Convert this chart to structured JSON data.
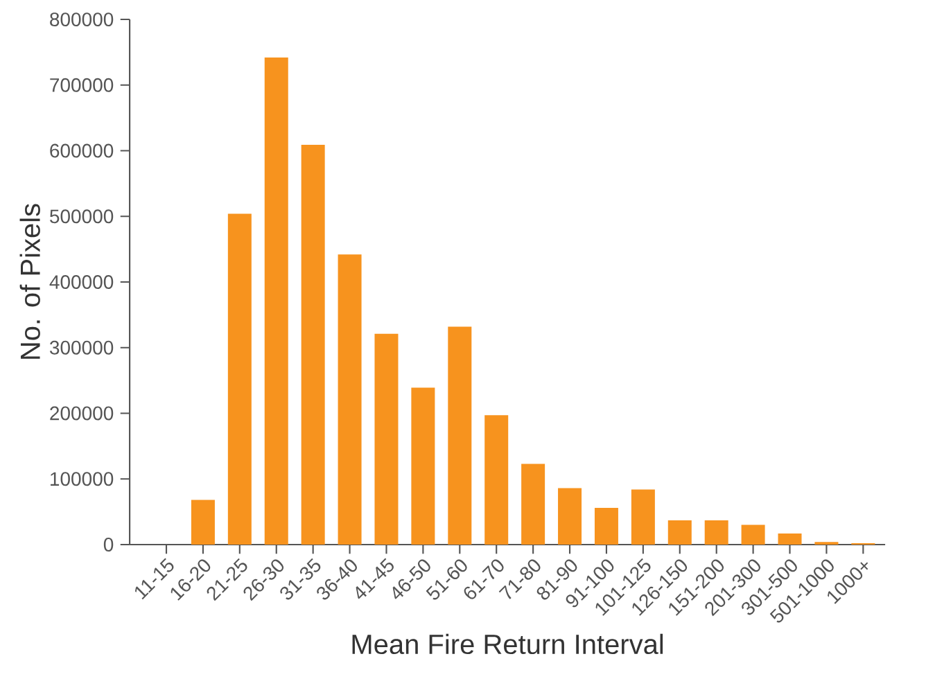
{
  "chart_data": {
    "type": "bar",
    "xlabel": "Mean Fire Return Interval",
    "ylabel": "No. of Pixels",
    "categories": [
      "11-15",
      "16-20",
      "21-25",
      "26-30",
      "31-35",
      "36-40",
      "41-45",
      "46-50",
      "51-60",
      "61-70",
      "71-80",
      "81-90",
      "91-100",
      "101-125",
      "126-150",
      "151-200",
      "201-300",
      "301-500",
      "501-1000",
      "1000+"
    ],
    "values": [
      0,
      68000,
      504000,
      742000,
      609000,
      442000,
      321000,
      239000,
      332000,
      197000,
      123000,
      86000,
      56000,
      84000,
      37000,
      37000,
      30000,
      17000,
      4000,
      2000
    ],
    "color": "#f7931e",
    "ylim": [
      0,
      800000
    ],
    "yticks": [
      0,
      100000,
      200000,
      300000,
      400000,
      500000,
      600000,
      700000,
      800000
    ],
    "grid": false
  }
}
